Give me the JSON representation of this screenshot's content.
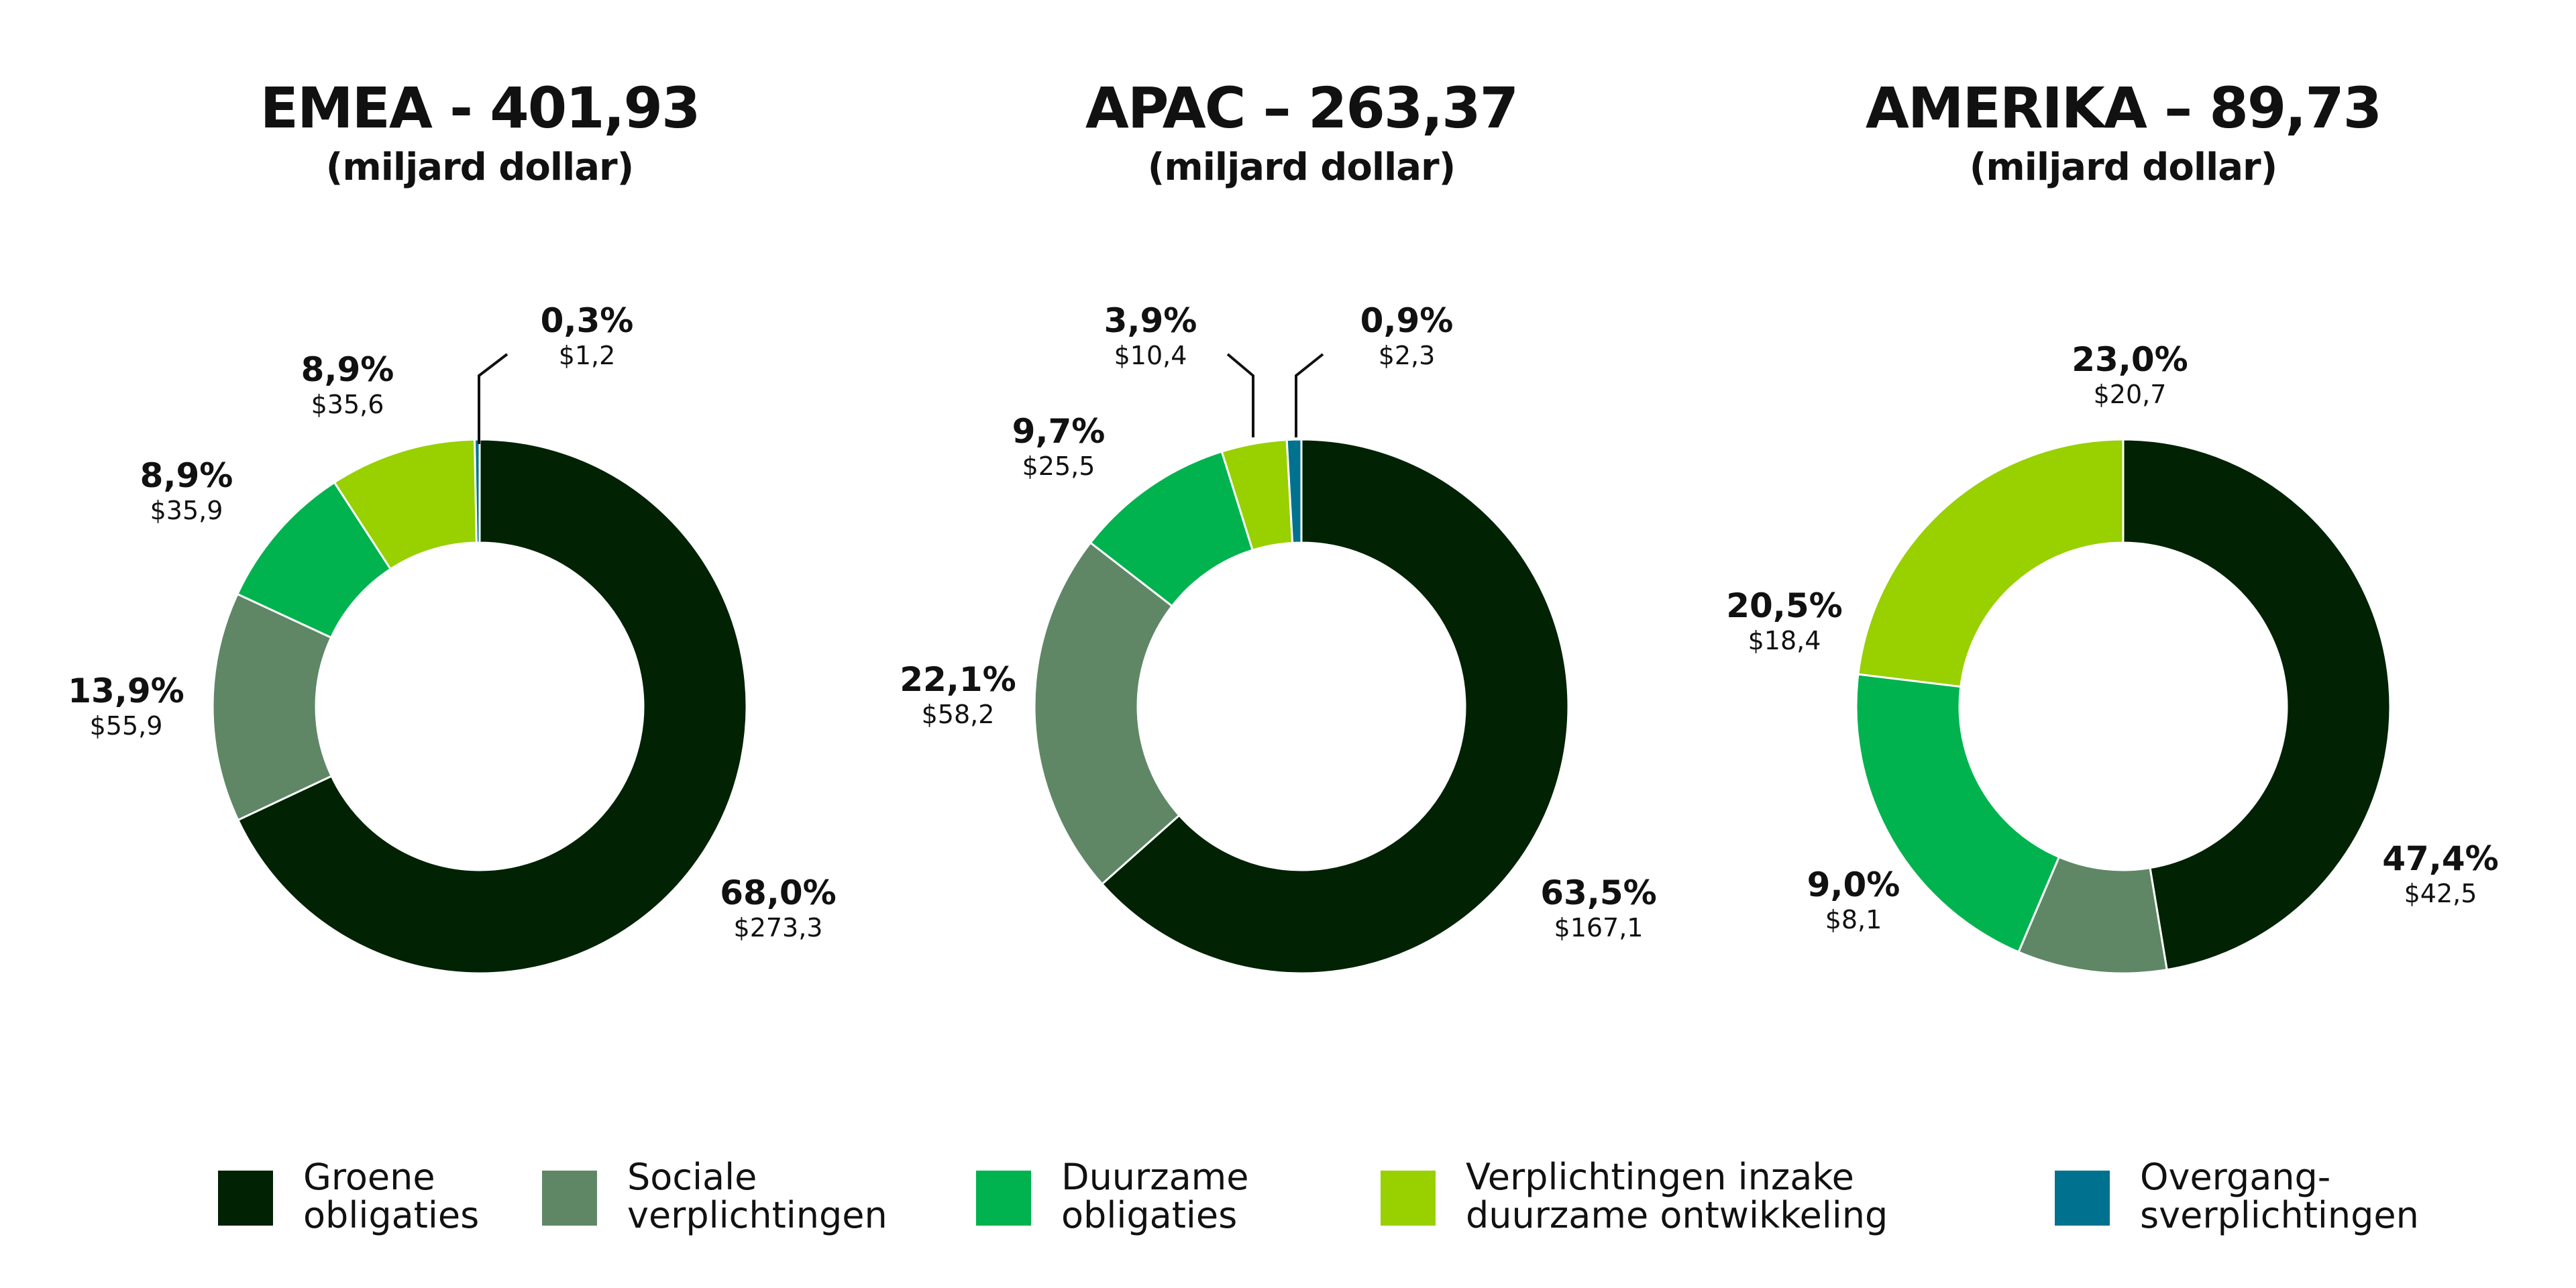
{
  "legend": [
    {
      "name": "Groene obligaties",
      "lines": [
        "Groene",
        "obligaties"
      ],
      "color": "#012203"
    },
    {
      "name": "Sociale verplichtingen",
      "lines": [
        "Sociale",
        "verplichtingen"
      ],
      "color": "#5f8766"
    },
    {
      "name": "Duurzame obligaties",
      "lines": [
        "Duurzame",
        "obligaties"
      ],
      "color": "#00b34f"
    },
    {
      "name": "Verplichtingen inzake duurzame ontwikkeling",
      "lines": [
        "Verplichtingen inzake",
        "duurzame ontwikkeling"
      ],
      "color": "#98d000"
    },
    {
      "name": "Overgang-sverplichtingen",
      "lines": [
        "Overgang-",
        "sverplichtingen"
      ],
      "color": "#00728f"
    }
  ],
  "chart_data": [
    {
      "type": "pie",
      "title": "EMEA - 401,93",
      "subtitle": "(miljard dollar)",
      "categories": [
        "Groene obligaties",
        "Sociale verplichtingen",
        "Duurzame obligaties",
        "Verplichtingen inzake duurzame ontwikkeling",
        "Overgang-sverplichtingen"
      ],
      "values": [
        273.3,
        55.9,
        35.9,
        35.6,
        1.2
      ],
      "percent_labels": [
        "68,0%",
        "13,9%",
        "8,9%",
        "8,9%",
        "0,3%"
      ],
      "value_labels": [
        "$273,3",
        "$55,9",
        "$35,9",
        "$35,6",
        "$1,2"
      ],
      "hole": true
    },
    {
      "type": "pie",
      "title": "APAC – 263,37",
      "subtitle": "(miljard dollar)",
      "categories": [
        "Groene obligaties",
        "Sociale verplichtingen",
        "Duurzame obligaties",
        "Verplichtingen inzake duurzame ontwikkeling",
        "Overgang-sverplichtingen"
      ],
      "values": [
        167.1,
        58.2,
        25.5,
        10.4,
        2.3
      ],
      "percent_labels": [
        "63,5%",
        "22,1%",
        "9,7%",
        "3,9%",
        "0,9%"
      ],
      "value_labels": [
        "$167,1",
        "$58,2",
        "$25,5",
        "$10,4",
        "$2,3"
      ],
      "hole": true
    },
    {
      "type": "pie",
      "title": "AMERIKA – 89,73",
      "subtitle": "(miljard dollar)",
      "categories": [
        "Groene obligaties",
        "Sociale verplichtingen",
        "Duurzame obligaties",
        "Verplichtingen inzake duurzame ontwikkeling"
      ],
      "values": [
        42.5,
        8.1,
        18.4,
        20.7
      ],
      "percent_labels": [
        "47,4%",
        "9,0%",
        "20,5%",
        "23,0%"
      ],
      "value_labels": [
        "$42,5",
        "$8,1",
        "$18,4",
        "$20,7"
      ],
      "hole": true
    }
  ]
}
